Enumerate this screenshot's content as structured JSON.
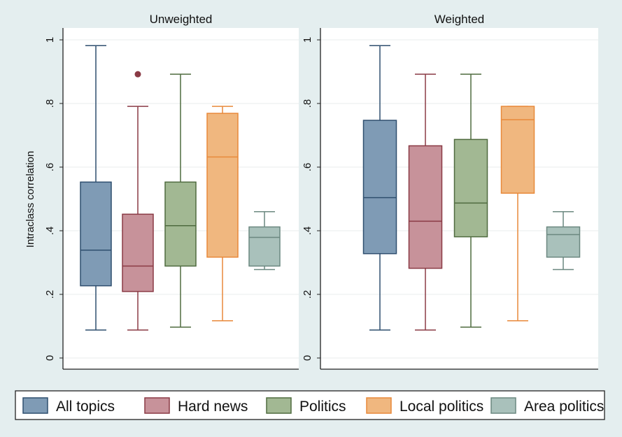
{
  "chart_data": {
    "type": "box",
    "ylabel": "Intraclass correlation",
    "ylim": [
      0,
      1
    ],
    "yticks": [
      0,
      0.2,
      0.4,
      0.6,
      0.8,
      1
    ],
    "ytick_labels": [
      "0",
      ".2",
      ".4",
      ".6",
      ".8",
      "1"
    ],
    "grid": true,
    "legend_position": "bottom",
    "series": [
      {
        "name": "All topics",
        "color": "#7f9bb5",
        "stroke": "#2f4f6f"
      },
      {
        "name": "Hard news",
        "color": "#c7929a",
        "stroke": "#8a3a45"
      },
      {
        "name": "Politics",
        "color": "#a2b893",
        "stroke": "#4f6b3f"
      },
      {
        "name": "Local politics",
        "color": "#f0b77f",
        "stroke": "#e8893a"
      },
      {
        "name": "Area politics",
        "color": "#a9c1bb",
        "stroke": "#6b8880"
      }
    ],
    "panels": [
      {
        "title": "Unweighted",
        "boxes": [
          {
            "min": 0.088,
            "q1": 0.227,
            "median": 0.339,
            "q3": 0.553,
            "max": 0.982,
            "outliers": []
          },
          {
            "min": 0.088,
            "q1": 0.209,
            "median": 0.289,
            "q3": 0.452,
            "max": 0.791,
            "outliers": [
              0.892
            ]
          },
          {
            "min": 0.097,
            "q1": 0.289,
            "median": 0.416,
            "q3": 0.553,
            "max": 0.892,
            "outliers": []
          },
          {
            "min": 0.117,
            "q1": 0.317,
            "median": 0.632,
            "q3": 0.769,
            "max": 0.791,
            "outliers": []
          },
          {
            "min": 0.278,
            "q1": 0.289,
            "median": 0.379,
            "q3": 0.412,
            "max": 0.46,
            "outliers": []
          }
        ]
      },
      {
        "title": "Weighted",
        "boxes": [
          {
            "min": 0.088,
            "q1": 0.328,
            "median": 0.504,
            "q3": 0.747,
            "max": 0.982,
            "outliers": []
          },
          {
            "min": 0.088,
            "q1": 0.282,
            "median": 0.43,
            "q3": 0.667,
            "max": 0.892,
            "outliers": []
          },
          {
            "min": 0.097,
            "q1": 0.381,
            "median": 0.487,
            "q3": 0.687,
            "max": 0.892,
            "outliers": []
          },
          {
            "min": 0.117,
            "q1": 0.518,
            "median": 0.749,
            "q3": 0.791,
            "max": 0.791,
            "outliers": []
          },
          {
            "min": 0.278,
            "q1": 0.317,
            "median": 0.388,
            "q3": 0.412,
            "max": 0.46,
            "outliers": []
          }
        ]
      }
    ]
  }
}
